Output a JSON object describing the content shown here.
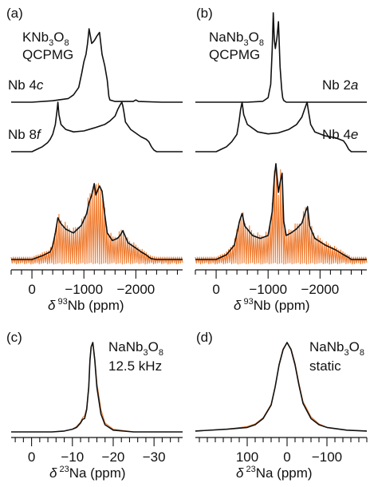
{
  "panels": {
    "a": {
      "tag": "(a)",
      "compound": "KNb",
      "c_sub1": "3",
      "c_o": "O",
      "c_sub2": "8",
      "method": "QCPMG",
      "site_top": "Nb 4",
      "site_top_it": "c",
      "site_mid": "Nb 8",
      "site_mid_it": "f"
    },
    "b": {
      "tag": "(b)",
      "compound": "NaNb",
      "c_sub1": "3",
      "c_o": "O",
      "c_sub2": "8",
      "method": "QCPMG",
      "site_top": "Nb 2",
      "site_top_it": "a",
      "site_mid": "Nb 4",
      "site_mid_it": "e"
    },
    "c": {
      "tag": "(c)",
      "compound": "NaNb",
      "c_sub1": "3",
      "c_o": "O",
      "c_sub2": "8",
      "condition": "12.5 kHz"
    },
    "d": {
      "tag": "(d)",
      "compound": "NaNb",
      "c_sub1": "3",
      "c_o": "O",
      "c_sub2": "8",
      "condition": "static"
    }
  },
  "axes": {
    "nb": {
      "delta": "δ",
      "mass": "93",
      "rest": "Nb (ppm)"
    },
    "na": {
      "delta": "δ",
      "mass": "23",
      "rest": "Na (ppm)"
    }
  },
  "chart_data": [
    {
      "id": "a",
      "type": "line",
      "nucleus": "93Nb",
      "reversed_x": true,
      "xlim": [
        400,
        -2900
      ],
      "tick_labels": [
        "0",
        "−1000",
        "−2000"
      ],
      "ticks": [
        0,
        -1000,
        -2000
      ],
      "minor_step": 200,
      "series": [
        {
          "role": "site-top",
          "color": "#111111",
          "x": [
            400,
            0,
            -400,
            -700,
            -800,
            -900,
            -960,
            -1000,
            -1040,
            -1070,
            -1100,
            -1150,
            -1180,
            -1210,
            -1250,
            -1300,
            -1350,
            -1400,
            -1450,
            -1480,
            -1500,
            -1600,
            -1950,
            -2000,
            -2050,
            -2500,
            -2900
          ],
          "y": [
            0.0,
            0.0,
            0.02,
            0.05,
            0.1,
            0.2,
            0.4,
            0.55,
            0.65,
            0.8,
            1.0,
            0.8,
            0.82,
            0.85,
            0.9,
            0.95,
            0.65,
            0.5,
            0.3,
            0.08,
            0.03,
            0.01,
            0.01,
            0.03,
            0.01,
            0.0,
            0.0
          ]
        },
        {
          "role": "site-mid",
          "color": "#111111",
          "x": [
            400,
            0,
            -100,
            -200,
            -300,
            -350,
            -400,
            -450,
            -480,
            -500,
            -520,
            -560,
            -650,
            -800,
            -1000,
            -1200,
            -1400,
            -1500,
            -1600,
            -1650,
            -1700,
            -1730,
            -1750,
            -1770,
            -1800,
            -1900,
            -2100,
            -2200,
            -2250,
            -2300,
            -2350,
            -2400,
            -2900
          ],
          "y": [
            0.0,
            0.0,
            0.05,
            0.1,
            0.18,
            0.25,
            0.35,
            0.55,
            0.8,
            1.0,
            0.75,
            0.55,
            0.45,
            0.4,
            0.42,
            0.48,
            0.55,
            0.62,
            0.72,
            0.85,
            0.95,
            1.0,
            0.92,
            0.8,
            0.6,
            0.45,
            0.3,
            0.25,
            0.2,
            0.1,
            0.03,
            0.0,
            0.0
          ]
        },
        {
          "role": "simulated-total",
          "color": "#111111",
          "x": [
            400,
            0,
            -200,
            -350,
            -400,
            -450,
            -500,
            -550,
            -650,
            -800,
            -950,
            -1050,
            -1100,
            -1150,
            -1200,
            -1230,
            -1270,
            -1300,
            -1350,
            -1400,
            -1450,
            -1550,
            -1650,
            -1700,
            -1750,
            -1800,
            -1850,
            -2000,
            -2100,
            -2200,
            -2250,
            -2300,
            -2400,
            -2900
          ],
          "y": [
            0.0,
            0.0,
            0.05,
            0.1,
            0.18,
            0.35,
            0.55,
            0.48,
            0.4,
            0.35,
            0.45,
            0.6,
            0.75,
            0.85,
            1.0,
            0.85,
            0.92,
            0.97,
            0.9,
            0.6,
            0.35,
            0.25,
            0.28,
            0.32,
            0.38,
            0.3,
            0.22,
            0.15,
            0.1,
            0.06,
            0.03,
            0.01,
            0.0,
            0.0
          ]
        },
        {
          "role": "experimental",
          "color": "#ee7d33",
          "spikelet_spacing": 40
        }
      ]
    },
    {
      "id": "b",
      "type": "line",
      "nucleus": "93Nb",
      "reversed_x": true,
      "xlim": [
        400,
        -2900
      ],
      "tick_labels": [
        "0",
        "−1000",
        "−2000"
      ],
      "ticks": [
        0,
        -1000,
        -2000
      ],
      "minor_step": 200,
      "series": [
        {
          "role": "site-top",
          "color": "#111111",
          "x": [
            400,
            0,
            -600,
            -900,
            -1000,
            -1050,
            -1080,
            -1100,
            -1120,
            -1140,
            -1170,
            -1200,
            -1230,
            -1260,
            -1280,
            -1300,
            -1350,
            -1400,
            -2900
          ],
          "y": [
            0.0,
            0.0,
            0.0,
            0.01,
            0.05,
            0.2,
            0.6,
            1.0,
            0.7,
            0.6,
            0.72,
            0.9,
            0.4,
            0.15,
            0.05,
            0.02,
            0.0,
            0.0,
            0.0
          ]
        },
        {
          "role": "site-mid",
          "color": "#111111",
          "x": [
            400,
            0,
            -100,
            -200,
            -300,
            -400,
            -440,
            -470,
            -500,
            -530,
            -600,
            -800,
            -1000,
            -1200,
            -1400,
            -1550,
            -1650,
            -1700,
            -1750,
            -1780,
            -1820,
            -1900,
            -2100,
            -2300,
            -2450,
            -2500,
            -2550,
            -2600,
            -2900
          ],
          "y": [
            0.0,
            0.0,
            0.05,
            0.1,
            0.2,
            0.35,
            0.6,
            0.85,
            1.0,
            0.75,
            0.55,
            0.4,
            0.36,
            0.38,
            0.45,
            0.55,
            0.7,
            0.85,
            1.0,
            0.8,
            0.55,
            0.4,
            0.32,
            0.28,
            0.22,
            0.15,
            0.05,
            0.0,
            0.0
          ]
        },
        {
          "role": "simulated-total",
          "color": "#111111",
          "x": [
            400,
            0,
            -200,
            -350,
            -450,
            -500,
            -550,
            -700,
            -850,
            -1000,
            -1080,
            -1120,
            -1150,
            -1200,
            -1230,
            -1270,
            -1300,
            -1350,
            -1450,
            -1550,
            -1650,
            -1720,
            -1760,
            -1800,
            -1900,
            -2100,
            -2300,
            -2450,
            -2550,
            -2600,
            -2900
          ],
          "y": [
            0.0,
            0.0,
            0.05,
            0.15,
            0.4,
            0.48,
            0.35,
            0.25,
            0.22,
            0.25,
            0.5,
            0.85,
            1.0,
            0.7,
            0.8,
            0.9,
            0.4,
            0.25,
            0.28,
            0.32,
            0.38,
            0.5,
            0.55,
            0.35,
            0.22,
            0.15,
            0.1,
            0.05,
            0.02,
            0.0,
            0.0
          ]
        },
        {
          "role": "experimental",
          "color": "#ee7d33",
          "spikelet_spacing": 40
        }
      ]
    },
    {
      "id": "c",
      "type": "line",
      "nucleus": "23Na",
      "reversed_x": true,
      "xlim": [
        5,
        -37
      ],
      "tick_labels": [
        "0",
        "−10",
        "−20",
        "−30"
      ],
      "ticks": [
        0,
        -10,
        -20,
        -30
      ],
      "minor_step": 2,
      "series": [
        {
          "role": "simulated",
          "color": "#111111",
          "x": [
            5,
            -5,
            -8,
            -10,
            -11,
            -12,
            -12.5,
            -13,
            -13.5,
            -14,
            -14.3,
            -14.6,
            -15,
            -15.5,
            -16,
            -17,
            -18,
            -20,
            -25,
            -37
          ],
          "y": [
            0.0,
            0.0,
            0.01,
            0.03,
            0.05,
            0.1,
            0.14,
            0.15,
            0.25,
            0.5,
            0.8,
            0.95,
            1.0,
            0.8,
            0.5,
            0.2,
            0.08,
            0.02,
            0.0,
            0.0
          ]
        },
        {
          "role": "experimental",
          "color": "#ee7d33",
          "x": [
            5,
            -5,
            -8,
            -10,
            -11,
            -12,
            -12.5,
            -13,
            -13.5,
            -14,
            -14.3,
            -14.6,
            -15,
            -15.5,
            -16,
            -17,
            -18,
            -20,
            -25,
            -37
          ],
          "y": [
            0.0,
            0.0,
            0.01,
            0.03,
            0.06,
            0.11,
            0.16,
            0.18,
            0.27,
            0.52,
            0.82,
            0.96,
            1.0,
            0.82,
            0.55,
            0.25,
            0.1,
            0.03,
            0.0,
            0.0
          ]
        }
      ]
    },
    {
      "id": "d",
      "type": "line",
      "nucleus": "23Na",
      "reversed_x": true,
      "xlim": [
        230,
        -200
      ],
      "tick_labels": [
        "100",
        "0",
        "−100"
      ],
      "ticks": [
        100,
        0,
        -100
      ],
      "minor_step": 20,
      "series": [
        {
          "role": "simulated",
          "color": "#111111",
          "x": [
            230,
            150,
            100,
            80,
            60,
            40,
            30,
            20,
            10,
            0,
            -10,
            -20,
            -30,
            -40,
            -60,
            -80,
            -100,
            -150,
            -200
          ],
          "y": [
            0.01,
            0.03,
            0.05,
            0.08,
            0.15,
            0.3,
            0.5,
            0.75,
            0.92,
            1.0,
            0.92,
            0.75,
            0.52,
            0.32,
            0.15,
            0.08,
            0.05,
            0.02,
            0.01
          ]
        },
        {
          "role": "experimental",
          "color": "#ee7d33",
          "x": [
            230,
            150,
            100,
            80,
            60,
            40,
            30,
            20,
            10,
            0,
            -10,
            -20,
            -30,
            -40,
            -60,
            -80,
            -100,
            -150,
            -200
          ],
          "y": [
            0.01,
            0.03,
            0.06,
            0.09,
            0.16,
            0.31,
            0.51,
            0.76,
            0.93,
            1.0,
            0.93,
            0.77,
            0.54,
            0.34,
            0.17,
            0.09,
            0.05,
            0.02,
            0.01
          ]
        }
      ]
    }
  ]
}
